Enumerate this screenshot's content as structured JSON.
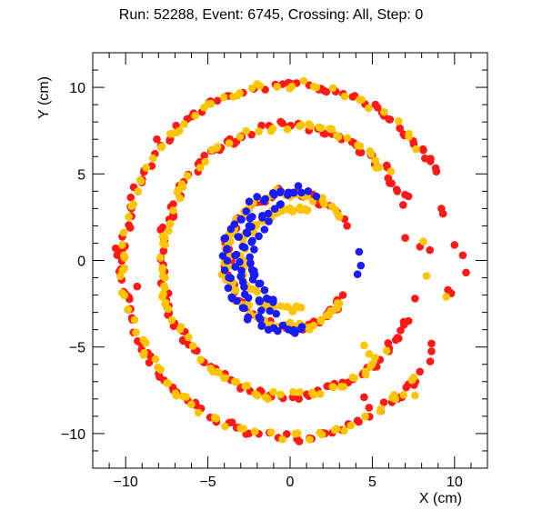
{
  "title": "Run: 52288, Event: 6745, Crossing: All, Step: 0",
  "chart_data": {
    "type": "scatter",
    "xlabel": "X (cm)",
    "ylabel": "Y (cm)",
    "xlim": [
      -12,
      12
    ],
    "ylim": [
      -12,
      12
    ],
    "xticks": [
      "−10",
      "−5",
      "0",
      "5",
      "10"
    ],
    "xtick_values": [
      -10,
      -5,
      0,
      5,
      10
    ],
    "yticks": [
      "−10",
      "−5",
      "0",
      "5",
      "10"
    ],
    "ytick_values": [
      -10,
      -5,
      0,
      5,
      10
    ],
    "grid": false,
    "series": [
      {
        "color": "#ff1a1a",
        "rings": [
          {
            "r": 10.2,
            "from": 30,
            "to": 330,
            "step": 3.2
          },
          {
            "r": 7.8,
            "from": 25,
            "to": 335,
            "step": 3.6
          },
          {
            "r": 3.9,
            "from": 30,
            "to": 330,
            "step": 6
          }
        ],
        "points": [
          [
            7.2,
            3.7
          ],
          [
            8.2,
            5.9
          ],
          [
            7.0,
            1.3
          ],
          [
            8.5,
            0.6
          ],
          [
            10.0,
            0.9
          ],
          [
            10.5,
            0.3
          ],
          [
            10.7,
            -0.7
          ],
          [
            9.6,
            -1.7
          ],
          [
            9.8,
            -1.9
          ],
          [
            7.6,
            -2.2
          ],
          [
            7.2,
            -3.5
          ],
          [
            8.6,
            -4.8
          ],
          [
            6.8,
            -7.9
          ],
          [
            5.7,
            -8.2
          ],
          [
            4.8,
            -8.5
          ],
          [
            4.5,
            -7.9
          ],
          [
            9.3,
            2.7
          ],
          [
            9.2,
            3.0
          ],
          [
            6.6,
            -4.5
          ],
          [
            7.9,
            0.8
          ],
          [
            -8.1,
            7.0
          ],
          [
            -10.6,
            0.7
          ],
          [
            -9.3,
            -1.5
          ],
          [
            -9.7,
            -2.8
          ]
        ]
      },
      {
        "color": "#ffc400",
        "rings": [
          {
            "r": 10.2,
            "from": 40,
            "to": 320,
            "step": 4.0
          },
          {
            "r": 7.8,
            "from": 40,
            "to": 320,
            "step": 4.5
          },
          {
            "r": 3.9,
            "from": 40,
            "to": 320,
            "step": 5
          },
          {
            "r": 2.9,
            "from": 70,
            "to": 290,
            "step": 6
          }
        ],
        "points": [
          [
            8.3,
            -0.9
          ],
          [
            8.1,
            1.1
          ],
          [
            9.5,
            -2.1
          ],
          [
            4.8,
            -5.4
          ],
          [
            4.9,
            -6.1
          ],
          [
            4.6,
            -6.6
          ],
          [
            6.4,
            -8.0
          ],
          [
            7.6,
            -7.8
          ],
          [
            4.5,
            -4.9
          ]
        ]
      },
      {
        "color": "#1a1aff",
        "rings": [
          {
            "r": 4.0,
            "from": 80,
            "to": 280,
            "step": 6
          },
          {
            "r": 3.2,
            "from": 100,
            "to": 260,
            "step": 7
          },
          {
            "r": 2.5,
            "from": 120,
            "to": 250,
            "step": 9
          }
        ],
        "points": [
          [
            4.2,
            0.5
          ],
          [
            4.3,
            -0.3
          ],
          [
            4.1,
            -0.8
          ],
          [
            -1.8,
            -3.4
          ],
          [
            -1.0,
            -3.9
          ],
          [
            0.3,
            -4.2
          ],
          [
            0.5,
            4.3
          ],
          [
            1.1,
            4.0
          ],
          [
            1.6,
            3.7
          ]
        ]
      }
    ]
  }
}
